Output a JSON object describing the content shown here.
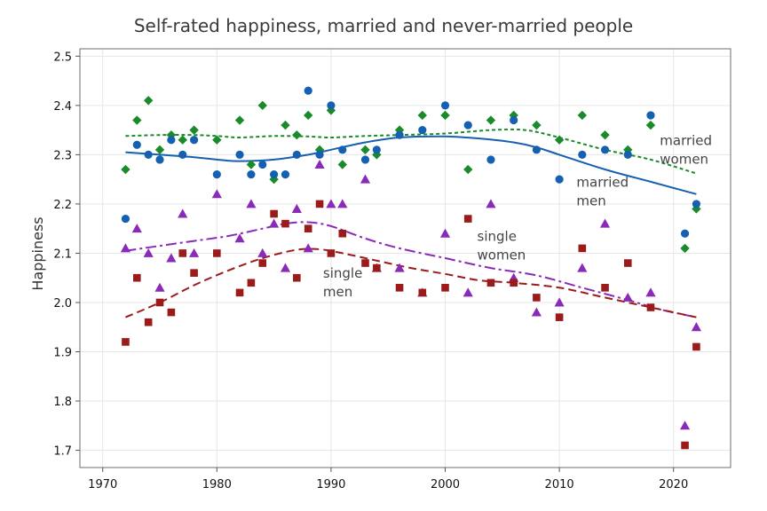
{
  "chart_data": {
    "type": "scatter",
    "title": "Self-rated happiness, married and never-married people",
    "xlabel": "",
    "ylabel": "Happiness",
    "xlim": [
      1968,
      2025
    ],
    "ylim": [
      1.665,
      2.515
    ],
    "xticks": [
      1970,
      1980,
      1990,
      2000,
      2010,
      2020
    ],
    "yticks": [
      1.7,
      1.8,
      1.9,
      2.0,
      2.1,
      2.2,
      2.3,
      2.4,
      2.5
    ],
    "grid": true,
    "legend": "none",
    "series": [
      {
        "label": "married women",
        "color": "#1a8a2a",
        "marker": "diamond",
        "line_style": "dotted",
        "points": [
          [
            1972,
            2.27
          ],
          [
            1973,
            2.37
          ],
          [
            1974,
            2.41
          ],
          [
            1975,
            2.31
          ],
          [
            1976,
            2.34
          ],
          [
            1977,
            2.33
          ],
          [
            1978,
            2.35
          ],
          [
            1980,
            2.33
          ],
          [
            1982,
            2.37
          ],
          [
            1983,
            2.28
          ],
          [
            1984,
            2.4
          ],
          [
            1985,
            2.25
          ],
          [
            1986,
            2.36
          ],
          [
            1987,
            2.34
          ],
          [
            1988,
            2.38
          ],
          [
            1989,
            2.31
          ],
          [
            1990,
            2.39
          ],
          [
            1991,
            2.28
          ],
          [
            1993,
            2.31
          ],
          [
            1994,
            2.3
          ],
          [
            1996,
            2.35
          ],
          [
            1998,
            2.38
          ],
          [
            2000,
            2.38
          ],
          [
            2002,
            2.27
          ],
          [
            2004,
            2.37
          ],
          [
            2006,
            2.38
          ],
          [
            2008,
            2.36
          ],
          [
            2010,
            2.33
          ],
          [
            2012,
            2.38
          ],
          [
            2014,
            2.34
          ],
          [
            2016,
            2.31
          ],
          [
            2018,
            2.36
          ],
          [
            2021,
            2.11
          ],
          [
            2022,
            2.19
          ]
        ],
        "trend": [
          [
            1972,
            2.338
          ],
          [
            1975,
            2.34
          ],
          [
            1978,
            2.34
          ],
          [
            1980,
            2.338
          ],
          [
            1982,
            2.335
          ],
          [
            1985,
            2.338
          ],
          [
            1988,
            2.337
          ],
          [
            1990,
            2.335
          ],
          [
            1993,
            2.338
          ],
          [
            1996,
            2.34
          ],
          [
            2000,
            2.343
          ],
          [
            2004,
            2.35
          ],
          [
            2007,
            2.35
          ],
          [
            2010,
            2.335
          ],
          [
            2014,
            2.31
          ],
          [
            2018,
            2.29
          ],
          [
            2022,
            2.262
          ]
        ]
      },
      {
        "label": "married men",
        "color": "#1560b0",
        "marker": "circle",
        "line_style": "solid",
        "points": [
          [
            1972,
            2.17
          ],
          [
            1973,
            2.32
          ],
          [
            1974,
            2.3
          ],
          [
            1975,
            2.29
          ],
          [
            1976,
            2.33
          ],
          [
            1977,
            2.3
          ],
          [
            1978,
            2.33
          ],
          [
            1980,
            2.26
          ],
          [
            1982,
            2.3
          ],
          [
            1983,
            2.26
          ],
          [
            1984,
            2.28
          ],
          [
            1985,
            2.26
          ],
          [
            1986,
            2.26
          ],
          [
            1987,
            2.3
          ],
          [
            1988,
            2.43
          ],
          [
            1989,
            2.3
          ],
          [
            1990,
            2.4
          ],
          [
            1991,
            2.31
          ],
          [
            1993,
            2.29
          ],
          [
            1994,
            2.31
          ],
          [
            1996,
            2.34
          ],
          [
            1998,
            2.35
          ],
          [
            2000,
            2.4
          ],
          [
            2002,
            2.36
          ],
          [
            2004,
            2.29
          ],
          [
            2006,
            2.37
          ],
          [
            2008,
            2.31
          ],
          [
            2010,
            2.25
          ],
          [
            2012,
            2.3
          ],
          [
            2014,
            2.31
          ],
          [
            2016,
            2.3
          ],
          [
            2018,
            2.38
          ],
          [
            2021,
            2.14
          ],
          [
            2022,
            2.2
          ]
        ],
        "trend": [
          [
            1972,
            2.305
          ],
          [
            1975,
            2.3
          ],
          [
            1978,
            2.295
          ],
          [
            1980,
            2.29
          ],
          [
            1982,
            2.287
          ],
          [
            1985,
            2.29
          ],
          [
            1988,
            2.3
          ],
          [
            1990,
            2.31
          ],
          [
            1993,
            2.325
          ],
          [
            1996,
            2.335
          ],
          [
            2000,
            2.337
          ],
          [
            2003,
            2.333
          ],
          [
            2006,
            2.325
          ],
          [
            2008,
            2.315
          ],
          [
            2010,
            2.3
          ],
          [
            2014,
            2.27
          ],
          [
            2018,
            2.245
          ],
          [
            2022,
            2.22
          ]
        ]
      },
      {
        "label": "single women",
        "color": "#8a2ab8",
        "marker": "triangle",
        "line_style": "dashdot",
        "points": [
          [
            1972,
            2.11
          ],
          [
            1973,
            2.15
          ],
          [
            1974,
            2.1
          ],
          [
            1975,
            2.03
          ],
          [
            1976,
            2.09
          ],
          [
            1977,
            2.18
          ],
          [
            1978,
            2.1
          ],
          [
            1980,
            2.22
          ],
          [
            1982,
            2.13
          ],
          [
            1983,
            2.2
          ],
          [
            1984,
            2.1
          ],
          [
            1985,
            2.16
          ],
          [
            1986,
            2.07
          ],
          [
            1987,
            2.19
          ],
          [
            1988,
            2.11
          ],
          [
            1989,
            2.28
          ],
          [
            1990,
            2.2
          ],
          [
            1991,
            2.2
          ],
          [
            1993,
            2.25
          ],
          [
            1994,
            2.07
          ],
          [
            1996,
            2.07
          ],
          [
            1998,
            2.02
          ],
          [
            2000,
            2.14
          ],
          [
            2002,
            2.02
          ],
          [
            2004,
            2.2
          ],
          [
            2006,
            2.05
          ],
          [
            2008,
            1.98
          ],
          [
            2010,
            2.0
          ],
          [
            2012,
            2.07
          ],
          [
            2014,
            2.16
          ],
          [
            2016,
            2.01
          ],
          [
            2018,
            2.02
          ],
          [
            2021,
            1.75
          ],
          [
            2022,
            1.95
          ]
        ],
        "trend": [
          [
            1972,
            2.105
          ],
          [
            1975,
            2.115
          ],
          [
            1978,
            2.125
          ],
          [
            1981,
            2.135
          ],
          [
            1984,
            2.15
          ],
          [
            1986,
            2.16
          ],
          [
            1988,
            2.163
          ],
          [
            1990,
            2.155
          ],
          [
            1993,
            2.13
          ],
          [
            1996,
            2.11
          ],
          [
            2000,
            2.09
          ],
          [
            2004,
            2.07
          ],
          [
            2008,
            2.055
          ],
          [
            2012,
            2.03
          ],
          [
            2016,
            2.005
          ],
          [
            2019,
            1.985
          ],
          [
            2022,
            1.97
          ]
        ]
      },
      {
        "label": "single men",
        "color": "#9b1b1b",
        "marker": "square",
        "line_style": "dashed",
        "points": [
          [
            1972,
            1.92
          ],
          [
            1973,
            2.05
          ],
          [
            1974,
            1.96
          ],
          [
            1975,
            2.0
          ],
          [
            1976,
            1.98
          ],
          [
            1977,
            2.1
          ],
          [
            1978,
            2.06
          ],
          [
            1980,
            2.1
          ],
          [
            1982,
            2.02
          ],
          [
            1983,
            2.04
          ],
          [
            1984,
            2.08
          ],
          [
            1985,
            2.18
          ],
          [
            1986,
            2.16
          ],
          [
            1987,
            2.05
          ],
          [
            1988,
            2.15
          ],
          [
            1989,
            2.2
          ],
          [
            1990,
            2.1
          ],
          [
            1991,
            2.14
          ],
          [
            1993,
            2.08
          ],
          [
            1994,
            2.07
          ],
          [
            1996,
            2.03
          ],
          [
            1998,
            2.02
          ],
          [
            2000,
            2.03
          ],
          [
            2002,
            2.17
          ],
          [
            2004,
            2.04
          ],
          [
            2006,
            2.04
          ],
          [
            2008,
            2.01
          ],
          [
            2010,
            1.97
          ],
          [
            2012,
            2.11
          ],
          [
            2014,
            2.03
          ],
          [
            2016,
            2.08
          ],
          [
            2018,
            1.99
          ],
          [
            2021,
            1.71
          ],
          [
            2022,
            1.91
          ]
        ],
        "trend": [
          [
            1972,
            1.97
          ],
          [
            1975,
            2.0
          ],
          [
            1978,
            2.035
          ],
          [
            1981,
            2.065
          ],
          [
            1984,
            2.09
          ],
          [
            1987,
            2.107
          ],
          [
            1989,
            2.108
          ],
          [
            1991,
            2.1
          ],
          [
            1994,
            2.085
          ],
          [
            1997,
            2.07
          ],
          [
            2000,
            2.058
          ],
          [
            2003,
            2.045
          ],
          [
            2006,
            2.04
          ],
          [
            2010,
            2.03
          ],
          [
            2014,
            2.01
          ],
          [
            2018,
            1.99
          ],
          [
            2022,
            1.97
          ]
        ]
      }
    ],
    "annotations": [
      {
        "text": [
          "married",
          "women"
        ],
        "x": 2018.8,
        "y": 2.32,
        "color": "#444444"
      },
      {
        "text": [
          "married",
          "men"
        ],
        "x": 2011.5,
        "y": 2.235,
        "color": "#444444"
      },
      {
        "text": [
          "single",
          "women"
        ],
        "x": 2002.8,
        "y": 2.125,
        "color": "#444444"
      },
      {
        "text": [
          "single",
          "men"
        ],
        "x": 1989.3,
        "y": 2.05,
        "color": "#444444"
      }
    ]
  }
}
